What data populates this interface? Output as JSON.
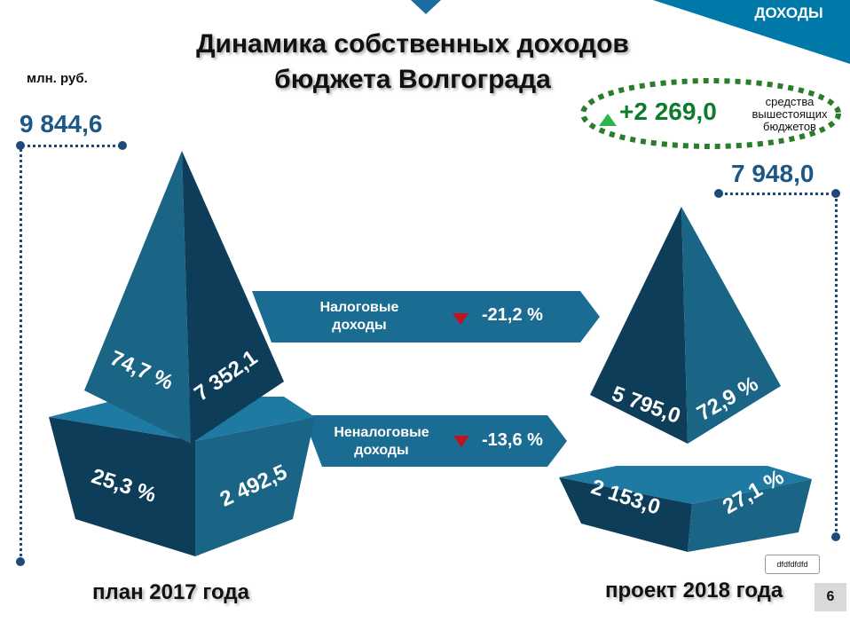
{
  "header": {
    "section_tab": "ДОХОДЫ",
    "title_line1": "Динамика собственных доходов",
    "title_line2": "бюджета Волгограда",
    "unit": "млн. руб."
  },
  "plan_2017": {
    "label": "план 2017 года",
    "total": "9 844,6",
    "tax_share": "74,7 %",
    "tax_value": "7 352,1",
    "nontax_share": "25,3 %",
    "nontax_value": "2 492,5"
  },
  "project_2018": {
    "label": "проект 2018 года",
    "total": "7 948,0",
    "tax_share": "72,9 %",
    "tax_value": "5 795,0",
    "nontax_share": "27,1 %",
    "nontax_value": "2 153,0"
  },
  "changes": {
    "tax_label_line1": "Налоговые",
    "tax_label_line2": "доходы",
    "tax_change": "-21,2 %",
    "nontax_label_line1": "Неналоговые",
    "nontax_label_line2": "доходы",
    "nontax_change": "-13,6 %"
  },
  "subsidy": {
    "value": "+2 269,0",
    "text_line1": "средства",
    "text_line2": "вышестоящих",
    "text_line3": "бюджетов"
  },
  "footer": {
    "note": "dfdfdfdfd",
    "page_number": "6"
  },
  "colors": {
    "dark_blue": "#0d3d59",
    "mid_blue": "#1a6485",
    "light_blue": "#2f84a8",
    "top_blue": "#3a96bb",
    "accent_teal": "#0079a8",
    "total_text": "#1b5787",
    "subsidy_green": "#0e7a2c",
    "down_red": "#c1121f"
  }
}
